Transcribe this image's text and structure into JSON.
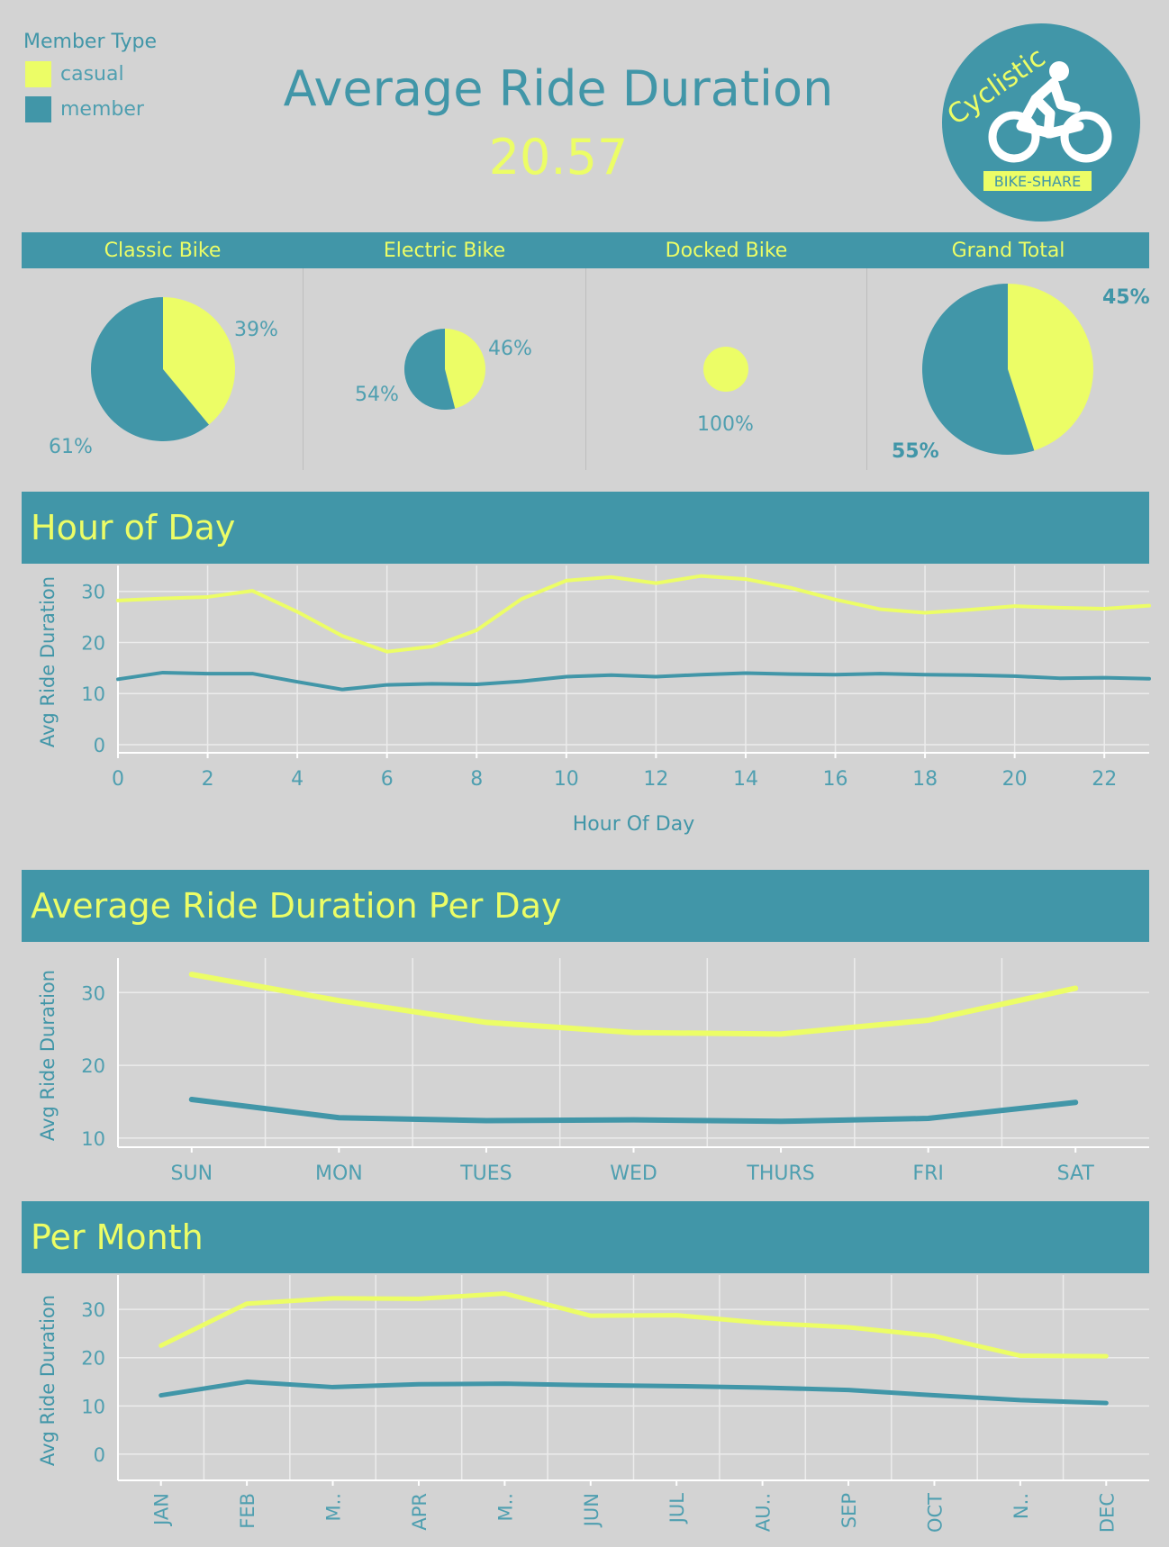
{
  "legend": {
    "title": "Member Type",
    "items": [
      {
        "label": "casual",
        "color": "#ecfd66"
      },
      {
        "label": "member",
        "color": "#4196a8"
      }
    ]
  },
  "header": {
    "title": "Average Ride Duration",
    "value": "20.57"
  },
  "logo": {
    "brand": "Cyclistic",
    "tagline": "BIKE-SHARE",
    "icon": "cyclist-icon"
  },
  "colors": {
    "casual": "#ecfd66",
    "member": "#4196a8",
    "background": "#d3d3d3",
    "band": "#4196a8"
  },
  "sections": {
    "hour": "Hour of Day",
    "day": "Average Ride Duration Per Day",
    "month": "Per Month"
  },
  "chart_data": [
    {
      "type": "pie",
      "name": "Classic Bike",
      "slices": [
        {
          "label": "casual",
          "value": 39,
          "text": "39%"
        },
        {
          "label": "member",
          "value": 61,
          "text": "61%"
        }
      ]
    },
    {
      "type": "pie",
      "name": "Electric Bike",
      "slices": [
        {
          "label": "casual",
          "value": 46,
          "text": "46%"
        },
        {
          "label": "member",
          "value": 54,
          "text": "54%"
        }
      ]
    },
    {
      "type": "pie",
      "name": "Docked Bike",
      "slices": [
        {
          "label": "casual",
          "value": 100,
          "text": "100%"
        }
      ]
    },
    {
      "type": "pie",
      "name": "Grand Total",
      "slices": [
        {
          "label": "casual",
          "value": 45,
          "text": "45%"
        },
        {
          "label": "member",
          "value": 55,
          "text": "55%"
        }
      ]
    },
    {
      "type": "line",
      "xlabel": "Hour Of Day",
      "ylabel": "Avg Ride Duration",
      "x": [
        0,
        1,
        2,
        3,
        4,
        5,
        6,
        7,
        8,
        9,
        10,
        11,
        12,
        13,
        14,
        15,
        16,
        17,
        18,
        19,
        20,
        21,
        22,
        23
      ],
      "xticks": [
        0,
        2,
        4,
        6,
        8,
        10,
        12,
        14,
        16,
        18,
        20,
        22
      ],
      "xlim": [
        0,
        23
      ],
      "ylim": [
        -3,
        34
      ],
      "yticks": [
        0,
        10,
        20,
        30
      ],
      "grid": true,
      "series": [
        {
          "name": "casual",
          "values": [
            28.2,
            28.6,
            28.9,
            30.1,
            26,
            21.3,
            18.2,
            19.2,
            22.4,
            28.5,
            32.1,
            32.8,
            31.6,
            33,
            32.4,
            30.7,
            28.4,
            26.5,
            25.8,
            26.4,
            27.1,
            26.8,
            26.6,
            27.2
          ]
        },
        {
          "name": "member",
          "values": [
            12.8,
            14.1,
            13.9,
            13.9,
            12.3,
            10.8,
            11.7,
            11.9,
            11.8,
            12.4,
            13.3,
            13.6,
            13.3,
            13.7,
            14,
            13.8,
            13.7,
            13.9,
            13.7,
            13.6,
            13.4,
            13,
            13.1,
            12.9
          ]
        }
      ]
    },
    {
      "type": "line",
      "xlabel": "",
      "ylabel": "Avg Ride Duration",
      "categories": [
        "SUN",
        "MON",
        "TUES",
        "WED",
        "THURS",
        "FRI",
        "SAT"
      ],
      "ylim": [
        8,
        34
      ],
      "yticks": [
        10,
        20,
        30
      ],
      "grid": true,
      "series": [
        {
          "name": "casual",
          "values": [
            32.5,
            28.9,
            25.9,
            24.5,
            24.3,
            26.2,
            30.6
          ]
        },
        {
          "name": "member",
          "values": [
            15.3,
            12.8,
            12.4,
            12.5,
            12.3,
            12.7,
            14.9
          ]
        }
      ]
    },
    {
      "type": "line",
      "xlabel": "",
      "ylabel": "Avg Ride Duration",
      "categories": [
        "JAN",
        "FEB",
        "M..",
        "APR",
        "M..",
        "JUN",
        "JUL",
        "AU..",
        "SEP",
        "OCT",
        "N..",
        "DEC"
      ],
      "ylim": [
        -3,
        36
      ],
      "yticks": [
        0,
        10,
        20,
        30
      ],
      "grid": true,
      "series": [
        {
          "name": "casual",
          "values": [
            22.5,
            31.2,
            32.3,
            32.2,
            33.3,
            28.7,
            28.8,
            27.2,
            26.3,
            24.5,
            20.4,
            20.3
          ]
        },
        {
          "name": "member",
          "values": [
            12.2,
            15,
            13.9,
            14.5,
            14.6,
            14.3,
            14.1,
            13.8,
            13.3,
            12.2,
            11.2,
            10.6
          ]
        }
      ]
    }
  ]
}
